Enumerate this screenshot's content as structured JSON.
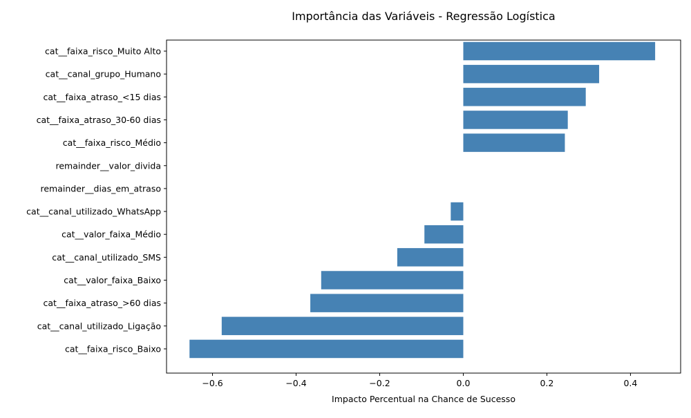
{
  "chart_data": {
    "type": "bar",
    "orientation": "horizontal",
    "title": "Importância das Variáveis - Regressão Logística",
    "xlabel": "Impacto Percentual na Chance de Sucesso",
    "ylabel": "",
    "xlim": [
      -0.71,
      0.52
    ],
    "xticks": [
      -0.6,
      -0.4,
      -0.2,
      0.0,
      0.2,
      0.4
    ],
    "xtick_labels": [
      "−0.6",
      "−0.4",
      "−0.2",
      "0.0",
      "0.2",
      "0.4"
    ],
    "grid": false,
    "bar_color": "#4682b4",
    "categories": [
      "cat__faixa_risco_Muito Alto",
      "cat__canal_grupo_Humano",
      "cat__faixa_atraso_<15 dias",
      "cat__faixa_atraso_30-60 dias",
      "cat__faixa_risco_Médio",
      "remainder__valor_divida",
      "remainder__dias_em_atraso",
      "cat__canal_utilizado_WhatsApp",
      "cat__valor_faixa_Médio",
      "cat__canal_utilizado_SMS",
      "cat__valor_faixa_Baixo",
      "cat__faixa_atraso_>60 dias",
      "cat__canal_utilizado_Ligação",
      "cat__faixa_risco_Baixo"
    ],
    "values": [
      0.459,
      0.325,
      0.293,
      0.25,
      0.243,
      0.0,
      0.0,
      -0.03,
      -0.093,
      -0.158,
      -0.34,
      -0.366,
      -0.578,
      -0.655
    ]
  }
}
